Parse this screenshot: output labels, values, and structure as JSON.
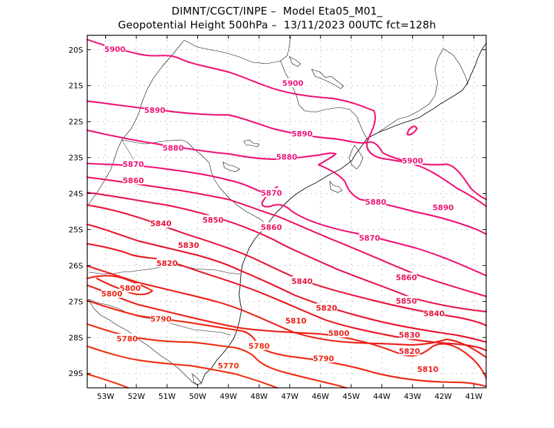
{
  "title": {
    "line1": "DIMNT/CGCT/INPE –  Model Eta05_M01_",
    "line2": "Geopotential Height 500hPa –  13/11/2023 00UTC fct=128h"
  },
  "axes": {
    "lat_labels": [
      "20S",
      "21S",
      "22S",
      "23S",
      "24S",
      "25S",
      "26S",
      "27S",
      "28S",
      "29S"
    ],
    "lon_labels": [
      "53W",
      "52W",
      "51W",
      "50W",
      "49W",
      "48W",
      "47W",
      "46W",
      "45W",
      "44W",
      "43W",
      "42W",
      "41W"
    ],
    "lat_range": [
      -19.6,
      -29.4
    ],
    "lon_range": [
      -53.6,
      -40.6
    ]
  },
  "colors": {
    "high": "#f01478",
    "mid": "#e8143c",
    "low": "#f03010",
    "coast": "#000000",
    "grid": "#888888"
  },
  "contours": [
    {
      "value": 5900,
      "label": "5900",
      "color": "#f01478",
      "labels": [
        {
          "lon": -52.7,
          "lat": -20.0
        },
        {
          "lon": -46.9,
          "lat": -20.95
        },
        {
          "lon": -43.0,
          "lat": -23.1
        }
      ]
    },
    {
      "value": 5890,
      "label": "5890",
      "color": "#f01478",
      "labels": [
        {
          "lon": -51.4,
          "lat": -21.7
        },
        {
          "lon": -46.6,
          "lat": -22.35
        },
        {
          "lon": -42.0,
          "lat": -24.4
        }
      ]
    },
    {
      "value": 5880,
      "label": "5880",
      "color": "#f01478",
      "labels": [
        {
          "lon": -50.8,
          "lat": -22.75
        },
        {
          "lon": -47.1,
          "lat": -23.0
        },
        {
          "lon": -44.2,
          "lat": -24.25
        }
      ]
    },
    {
      "value": 5870,
      "label": "5870",
      "color": "#f01478",
      "labels": [
        {
          "lon": -52.1,
          "lat": -23.2
        },
        {
          "lon": -47.6,
          "lat": -24.0
        },
        {
          "lon": -44.4,
          "lat": -25.25
        }
      ]
    },
    {
      "value": 5860,
      "label": "5860",
      "color": "#ec1460",
      "labels": [
        {
          "lon": -52.1,
          "lat": -23.65
        },
        {
          "lon": -47.6,
          "lat": -24.95
        },
        {
          "lon": -43.2,
          "lat": -26.35
        }
      ]
    },
    {
      "value": 5850,
      "label": "5850",
      "color": "#e8144c",
      "labels": [
        {
          "lon": -49.5,
          "lat": -24.75
        },
        {
          "lon": -43.2,
          "lat": -27.0
        }
      ]
    },
    {
      "value": 5840,
      "label": "5840",
      "color": "#e8143c",
      "labels": [
        {
          "lon": -51.2,
          "lat": -24.85
        },
        {
          "lon": -46.6,
          "lat": -26.45
        },
        {
          "lon": -42.3,
          "lat": -27.35
        }
      ]
    },
    {
      "value": 5830,
      "label": "5830",
      "color": "#e8142c",
      "labels": [
        {
          "lon": -50.3,
          "lat": -25.45
        },
        {
          "lon": -43.1,
          "lat": -27.95
        }
      ]
    },
    {
      "value": 5820,
      "label": "5820",
      "color": "#e81820",
      "labels": [
        {
          "lon": -51.0,
          "lat": -25.95
        },
        {
          "lon": -45.8,
          "lat": -27.2
        },
        {
          "lon": -43.1,
          "lat": -28.4
        }
      ]
    },
    {
      "value": 5810,
      "label": "5810",
      "color": "#ec2018",
      "labels": [
        {
          "lon": -46.8,
          "lat": -27.55
        },
        {
          "lon": -42.5,
          "lat": -28.9
        }
      ]
    },
    {
      "value": 5800,
      "label": "5800",
      "color": "#ec2418",
      "labels": [
        {
          "lon": -52.2,
          "lat": -26.65
        },
        {
          "lon": -52.8,
          "lat": -26.8
        },
        {
          "lon": -45.4,
          "lat": -27.9
        }
      ]
    },
    {
      "value": 5790,
      "label": "5790",
      "color": "#f02814",
      "labels": [
        {
          "lon": -51.2,
          "lat": -27.5
        },
        {
          "lon": -45.9,
          "lat": -28.6
        }
      ]
    },
    {
      "value": 5780,
      "label": "5780",
      "color": "#f02c10",
      "labels": [
        {
          "lon": -52.3,
          "lat": -28.05
        },
        {
          "lon": -48.0,
          "lat": -28.25
        }
      ]
    },
    {
      "value": 5770,
      "label": "5770",
      "color": "#f03010",
      "labels": [
        {
          "lon": -49.0,
          "lat": -28.8
        }
      ]
    }
  ]
}
